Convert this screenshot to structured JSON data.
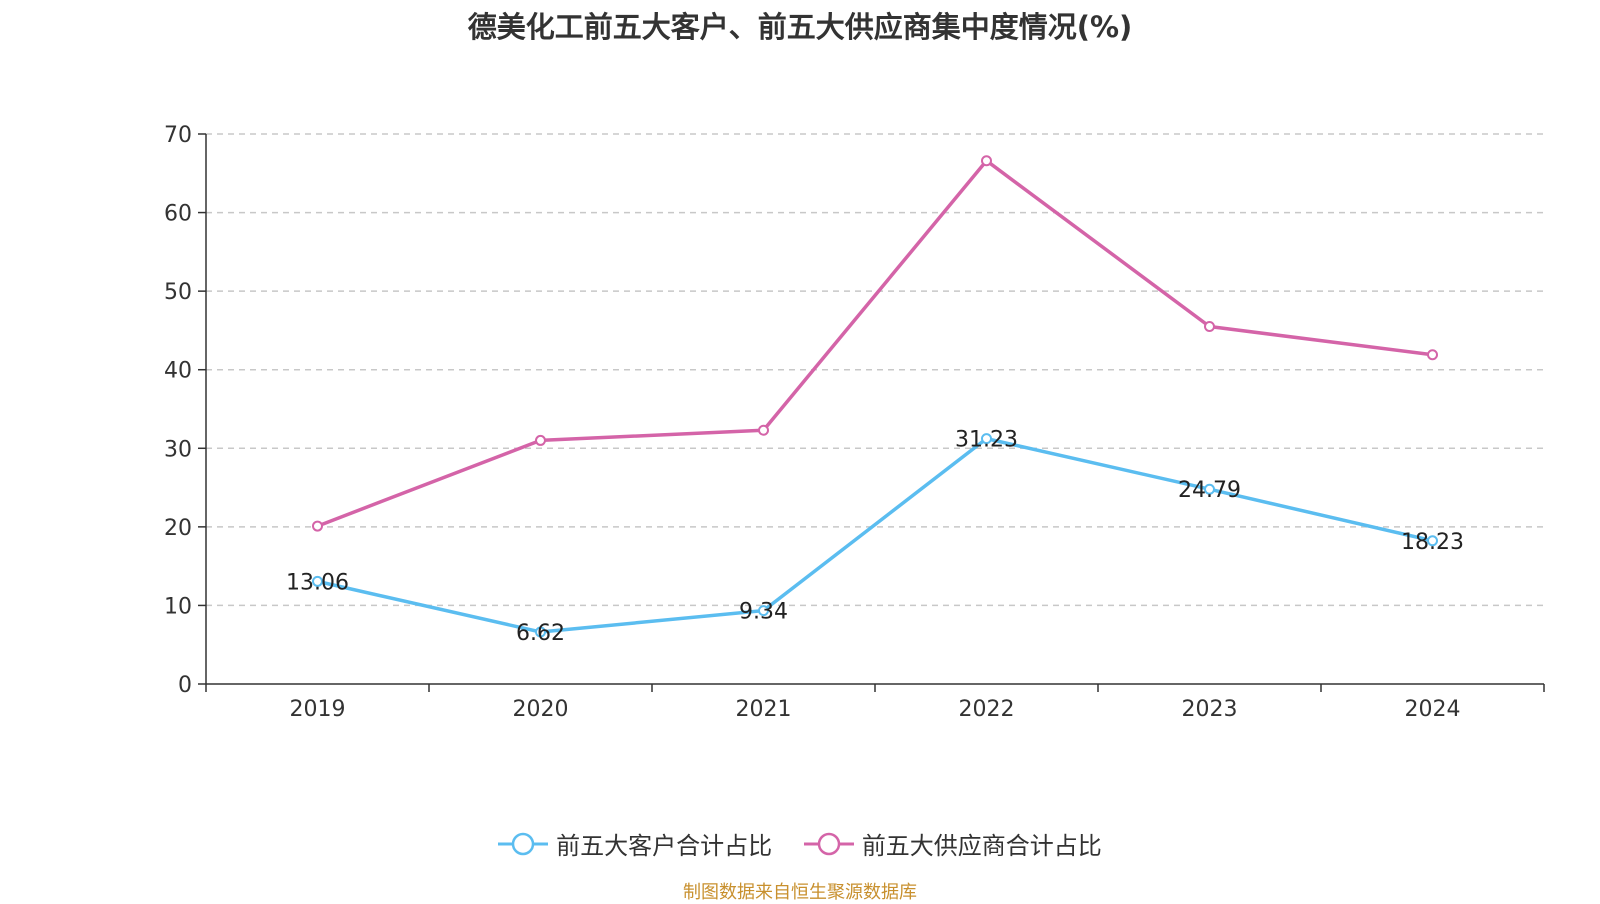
{
  "chart_data": {
    "type": "line",
    "title": "德美化工前五大客户、前五大供应商集中度情况(%)",
    "categories": [
      "2019",
      "2020",
      "2021",
      "2022",
      "2023",
      "2024"
    ],
    "ylim": [
      0,
      70
    ],
    "yticks": [
      "0",
      "10",
      "20",
      "30",
      "40",
      "50",
      "60",
      "70"
    ],
    "grid": "horizontal-dashed",
    "legend_position": "bottom",
    "series": [
      {
        "name": "前五大客户合计占比",
        "color": "#5bbdf0",
        "values": [
          13.06,
          6.62,
          9.34,
          31.23,
          24.79,
          18.23
        ],
        "labels": [
          "13.06",
          "6.62",
          "9.34",
          "31.23",
          "24.79",
          "18.23"
        ],
        "show_labels": true
      },
      {
        "name": "前五大供应商合计占比",
        "color": "#d464a8",
        "values": [
          20.1,
          31.0,
          32.3,
          66.6,
          45.5,
          41.9
        ],
        "show_labels": false
      }
    ]
  },
  "source_note": "制图数据来自恒生聚源数据库"
}
